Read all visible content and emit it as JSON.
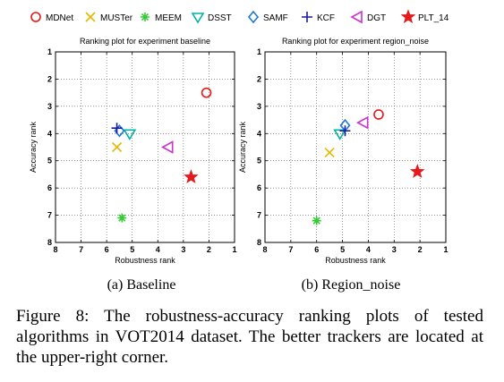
{
  "legend": {
    "items": [
      {
        "name": "MDNet",
        "marker": "circle",
        "color": "#e41a1c"
      },
      {
        "name": "MUSTer",
        "marker": "x",
        "color": "#e6b800"
      },
      {
        "name": "MEEM",
        "marker": "asterisk",
        "color": "#33cc33"
      },
      {
        "name": "DSST",
        "marker": "triangle-down",
        "color": "#00b3a4"
      },
      {
        "name": "SAMF",
        "marker": "diamond",
        "color": "#1f78d1"
      },
      {
        "name": "KCF",
        "marker": "plus",
        "color": "#1a1aa8"
      },
      {
        "name": "DGT",
        "marker": "triangle-left",
        "color": "#cc33cc"
      },
      {
        "name": "PLT_14",
        "marker": "star",
        "color": "#e41a1c"
      }
    ]
  },
  "chart_data": [
    {
      "type": "scatter",
      "title": "Ranking plot for experiment baseline",
      "xlabel": "Robustness rank",
      "ylabel": "Accuracy rank",
      "xlim": [
        8,
        1
      ],
      "ylim": [
        8,
        1
      ],
      "x_ticks": [
        "8",
        "7",
        "6",
        "5",
        "4",
        "3",
        "2",
        "1"
      ],
      "y_ticks": [
        "1",
        "2",
        "3",
        "4",
        "5",
        "6",
        "7",
        "8"
      ],
      "grid": true,
      "points": [
        {
          "series": "MDNet",
          "x": 2.1,
          "y": 2.5
        },
        {
          "series": "MUSTer",
          "x": 5.6,
          "y": 4.5
        },
        {
          "series": "MEEM",
          "x": 5.4,
          "y": 7.1
        },
        {
          "series": "DSST",
          "x": 5.1,
          "y": 4.0
        },
        {
          "series": "SAMF",
          "x": 5.5,
          "y": 3.9
        },
        {
          "series": "KCF",
          "x": 5.6,
          "y": 3.8
        },
        {
          "series": "DGT",
          "x": 3.6,
          "y": 4.5
        },
        {
          "series": "PLT_14",
          "x": 2.7,
          "y": 5.6
        }
      ],
      "caption": "(a) Baseline"
    },
    {
      "type": "scatter",
      "title": "Ranking plot for experiment region_noise",
      "xlabel": "Robustness rank",
      "ylabel": "Accuracy rank",
      "xlim": [
        8,
        1
      ],
      "ylim": [
        8,
        1
      ],
      "x_ticks": [
        "8",
        "7",
        "6",
        "5",
        "4",
        "3",
        "2",
        "1"
      ],
      "y_ticks": [
        "1",
        "2",
        "3",
        "4",
        "5",
        "6",
        "7",
        "8"
      ],
      "grid": true,
      "points": [
        {
          "series": "MDNet",
          "x": 3.6,
          "y": 3.3
        },
        {
          "series": "MUSTer",
          "x": 5.5,
          "y": 4.7
        },
        {
          "series": "MEEM",
          "x": 6.0,
          "y": 7.2
        },
        {
          "series": "DSST",
          "x": 5.1,
          "y": 4.0
        },
        {
          "series": "SAMF",
          "x": 4.9,
          "y": 3.7
        },
        {
          "series": "KCF",
          "x": 4.9,
          "y": 3.9
        },
        {
          "series": "DGT",
          "x": 4.2,
          "y": 3.6
        },
        {
          "series": "PLT_14",
          "x": 2.1,
          "y": 5.4
        }
      ],
      "caption": "(b) Region_noise"
    }
  ],
  "figure_caption": "Figure 8: The robustness-accuracy ranking plots of tested algorithms in VOT2014 dataset. The better trackers are located at the upper-right corner."
}
